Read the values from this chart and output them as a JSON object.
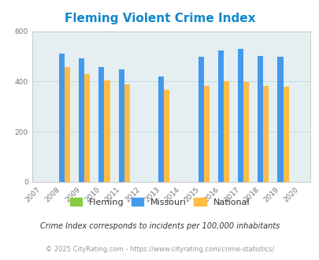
{
  "title": "Fleming Violent Crime Index",
  "all_years": [
    2007,
    2008,
    2009,
    2010,
    2011,
    2012,
    2013,
    2014,
    2015,
    2016,
    2017,
    2018,
    2019,
    2020
  ],
  "data_years": [
    2008,
    2009,
    2010,
    2011,
    2013,
    2015,
    2016,
    2017,
    2018,
    2019
  ],
  "fleming": [
    0,
    0,
    0,
    0,
    0,
    0,
    0,
    0,
    0,
    0
  ],
  "missouri": [
    510,
    493,
    459,
    449,
    420,
    500,
    525,
    530,
    503,
    497
  ],
  "national": [
    458,
    428,
    404,
    390,
    367,
    383,
    400,
    397,
    383,
    379
  ],
  "fleming_color": "#88cc44",
  "missouri_color": "#4499ee",
  "national_color": "#ffbb44",
  "bg_color": "#e5eff2",
  "title_color": "#1188cc",
  "grid_color": "#c8dcdc",
  "ylim": [
    0,
    600
  ],
  "yticks": [
    0,
    200,
    400,
    600
  ],
  "legend_labels": [
    "Fleming",
    "Missouri",
    "National"
  ],
  "footnote1": "Crime Index corresponds to incidents per 100,000 inhabitants",
  "footnote2": "© 2025 CityRating.com - https://www.cityrating.com/crime-statistics/",
  "bar_width": 0.28,
  "title_fontsize": 11,
  "tick_fontsize": 6.5,
  "legend_fontsize": 8,
  "footnote1_fontsize": 7,
  "footnote2_fontsize": 6
}
